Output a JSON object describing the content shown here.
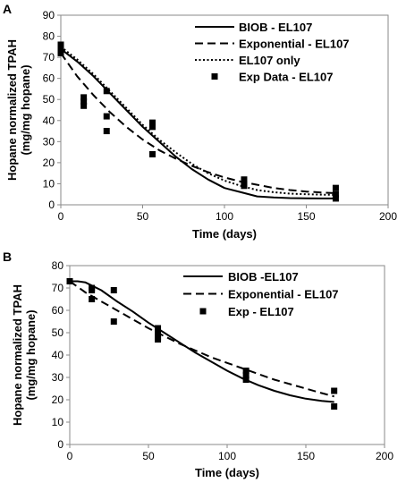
{
  "chart_data": [
    {
      "panel": "A",
      "type": "line",
      "xlabel": "Time (days)",
      "ylabel": "Hopane normalized TPAH (mg/mg hopane)",
      "xlim": [
        0,
        200
      ],
      "ylim": [
        0,
        90
      ],
      "xticks": [
        0,
        50,
        100,
        150,
        200
      ],
      "yticks": [
        0,
        10,
        20,
        30,
        40,
        50,
        60,
        70,
        80,
        90
      ],
      "legend_position": "top-right",
      "series": [
        {
          "name": "BIOB - EL107",
          "style": "solid",
          "x": [
            0,
            10,
            20,
            30,
            40,
            50,
            60,
            70,
            80,
            90,
            100,
            110,
            120,
            130,
            140,
            150,
            160,
            168
          ],
          "y": [
            74,
            68,
            61,
            53,
            45,
            37,
            30,
            23,
            17,
            12,
            8,
            6,
            4,
            3.5,
            3.2,
            3.1,
            3.0,
            3.0
          ]
        },
        {
          "name": "Exponential - EL107",
          "style": "dashed",
          "x": [
            0,
            10,
            20,
            30,
            40,
            50,
            60,
            70,
            80,
            90,
            100,
            110,
            120,
            130,
            140,
            150,
            160,
            168
          ],
          "y": [
            72,
            61,
            52,
            44,
            37,
            31,
            26,
            22,
            18.5,
            15.5,
            13,
            11,
            9.5,
            8,
            7,
            6.3,
            5.8,
            5.5
          ]
        },
        {
          "name": "EL107 only",
          "style": "dotted",
          "x": [
            0,
            10,
            20,
            30,
            40,
            50,
            60,
            70,
            80,
            90,
            100,
            110,
            120,
            130,
            140,
            150,
            160,
            168
          ],
          "y": [
            75,
            69,
            62,
            54,
            46,
            38,
            31,
            25,
            19.5,
            15,
            11.5,
            9,
            7,
            6,
            5.3,
            5,
            4.8,
            4.7
          ]
        },
        {
          "name": "Exp Data - EL107",
          "style": "markers",
          "x": [
            0,
            0,
            0,
            14,
            14,
            14,
            28,
            28,
            28,
            56,
            56,
            56,
            112,
            112,
            112,
            168,
            168,
            168
          ],
          "y": [
            76,
            74,
            72,
            51,
            49,
            47,
            54,
            42,
            35,
            39,
            37,
            24,
            12,
            10,
            9,
            8,
            5,
            3
          ]
        }
      ]
    },
    {
      "panel": "B",
      "type": "line",
      "xlabel": "Time (days)",
      "ylabel": "Hopane normalized TPAH (mg/mg hopane)",
      "xlim": [
        0,
        200
      ],
      "ylim": [
        0,
        80
      ],
      "xticks": [
        0,
        50,
        100,
        150,
        200
      ],
      "yticks": [
        0,
        10,
        20,
        30,
        40,
        50,
        60,
        70,
        80
      ],
      "legend_position": "top-right",
      "series": [
        {
          "name": "BIOB -EL107",
          "style": "solid",
          "x": [
            0,
            5,
            10,
            20,
            30,
            40,
            50,
            60,
            70,
            80,
            90,
            100,
            110,
            120,
            130,
            140,
            150,
            160,
            168
          ],
          "y": [
            73,
            73,
            72.5,
            69,
            64,
            59.5,
            54.5,
            50,
            45.5,
            41,
            37,
            33,
            29.5,
            26.5,
            24,
            22,
            20.5,
            19.5,
            19
          ]
        },
        {
          "name": "Exponential - EL107",
          "style": "dashed",
          "x": [
            0,
            10,
            20,
            30,
            40,
            50,
            60,
            70,
            80,
            90,
            100,
            110,
            120,
            130,
            140,
            150,
            160,
            168
          ],
          "y": [
            73,
            68,
            64,
            60,
            56,
            52,
            48.5,
            45,
            42,
            39,
            36.5,
            34,
            31.5,
            29,
            27,
            25,
            23,
            21.5
          ]
        },
        {
          "name": "Exp - EL107",
          "style": "markers",
          "x": [
            0,
            14,
            14,
            14,
            28,
            28,
            56,
            56,
            56,
            56,
            112,
            112,
            112,
            168,
            168
          ],
          "y": [
            73,
            70,
            69,
            65,
            69,
            55,
            52,
            50,
            48,
            47,
            33,
            31,
            29,
            24,
            17
          ]
        }
      ]
    }
  ]
}
